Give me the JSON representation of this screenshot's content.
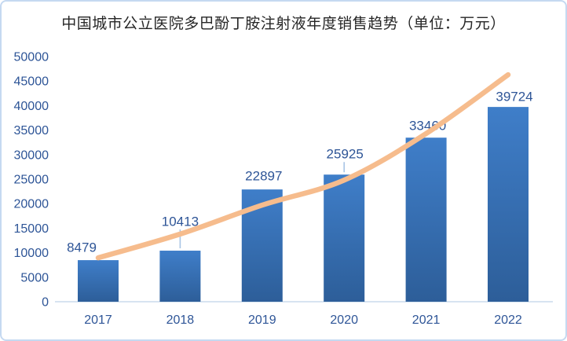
{
  "title": "中国城市公立医院多巴酚丁胺注射液年度销售趋势（单位：万元）",
  "chart_data": {
    "type": "bar",
    "categories": [
      "2017",
      "2018",
      "2019",
      "2020",
      "2021",
      "2022"
    ],
    "values": [
      8479,
      10413,
      22897,
      25925,
      33460,
      39724
    ],
    "data_labels": [
      "8479",
      "10413",
      "22897",
      "25925",
      "33460",
      "39724"
    ],
    "trendline": {
      "type": "smooth-exponential",
      "values": [
        8950,
        13800,
        19700,
        24800,
        34300,
        46300
      ]
    },
    "title": "中国城市公立医院多巴酚丁胺注射液年度销售趋势（单位：万元）",
    "xlabel": "",
    "ylabel": "",
    "ylim": [
      0,
      50000
    ],
    "ytick_step": 5000,
    "yticks": [
      "0",
      "5000",
      "10000",
      "15000",
      "20000",
      "25000",
      "30000",
      "35000",
      "40000",
      "45000",
      "50000"
    ],
    "grid": false,
    "legend": "none",
    "colors": {
      "bar_top": "#3F7EC9",
      "bar_bottom": "#2D5E99",
      "trendline": "#F6BC8D",
      "tick_label": "#2E5597",
      "data_label": "#2E5597",
      "axis_line": "#D7E4F1",
      "leader_line": "#A8C4E5",
      "frame_border": "#C5D9F1",
      "title_color": "#262626",
      "background": "#FFFFFF"
    }
  }
}
